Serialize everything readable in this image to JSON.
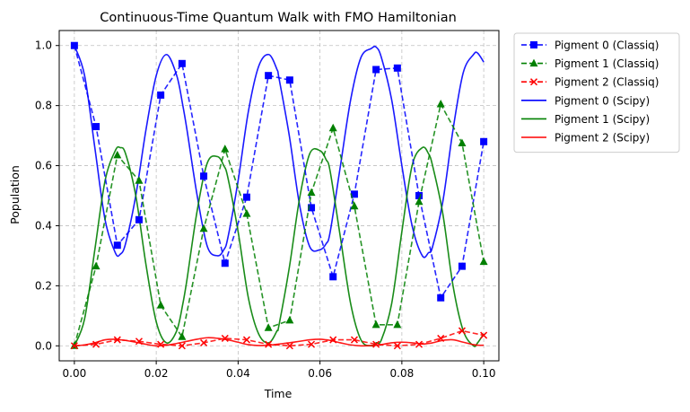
{
  "chart_data": {
    "type": "line",
    "title": "Continuous-Time Quantum Walk with FMO Hamiltonian",
    "xlabel": "Time",
    "ylabel": "Population",
    "xlim": [
      -0.0037,
      0.1037
    ],
    "ylim": [
      -0.05,
      1.05
    ],
    "xticks": [
      0.0,
      0.02,
      0.04,
      0.06,
      0.08,
      0.1
    ],
    "xtick_labels": [
      "0.00",
      "0.02",
      "0.04",
      "0.06",
      "0.08",
      "0.10"
    ],
    "yticks": [
      0.0,
      0.2,
      0.4,
      0.6,
      0.8,
      1.0
    ],
    "ytick_labels": [
      "0.0",
      "0.2",
      "0.4",
      "0.6",
      "0.8",
      "1.0"
    ],
    "grid": true,
    "legend_position": "outside-right",
    "x_sampled": [
      0.0,
      0.0053,
      0.0105,
      0.0158,
      0.0211,
      0.0263,
      0.0316,
      0.0368,
      0.0421,
      0.0474,
      0.0526,
      0.0579,
      0.0632,
      0.0684,
      0.0737,
      0.0789,
      0.0842,
      0.0895,
      0.0947,
      0.1
    ],
    "x_dense": [
      0.0,
      0.0025,
      0.005,
      0.0075,
      0.01,
      0.0112,
      0.0125,
      0.015,
      0.0175,
      0.02,
      0.0225,
      0.025,
      0.0265,
      0.0275,
      0.03,
      0.0325,
      0.035,
      0.0365,
      0.0375,
      0.04,
      0.0425,
      0.045,
      0.0475,
      0.0495,
      0.05,
      0.0525,
      0.055,
      0.0575,
      0.06,
      0.0615,
      0.0625,
      0.065,
      0.0675,
      0.07,
      0.0725,
      0.0737,
      0.075,
      0.0775,
      0.08,
      0.0825,
      0.085,
      0.0865,
      0.0875,
      0.09,
      0.0925,
      0.095,
      0.0975,
      0.0985,
      0.1
    ],
    "series": [
      {
        "name": "Pigment 0 (Classiq)",
        "kind": "sampled",
        "color": "#0000ff",
        "marker": "square",
        "y": [
          1.0,
          0.73,
          0.335,
          0.42,
          0.835,
          0.94,
          0.565,
          0.275,
          0.495,
          0.9,
          0.885,
          0.46,
          0.23,
          0.505,
          0.92,
          0.925,
          0.5,
          0.16,
          0.265,
          0.68
        ]
      },
      {
        "name": "Pigment 1 (Classiq)",
        "kind": "sampled",
        "color": "#008000",
        "marker": "triangle",
        "y": [
          0.0,
          0.265,
          0.635,
          0.55,
          0.135,
          0.03,
          0.39,
          0.655,
          0.44,
          0.06,
          0.085,
          0.51,
          0.725,
          0.465,
          0.07,
          0.07,
          0.48,
          0.805,
          0.675,
          0.28
        ]
      },
      {
        "name": "Pigment 2 (Classiq)",
        "kind": "sampled",
        "color": "#ff0000",
        "marker": "x",
        "y": [
          0.0,
          0.005,
          0.02,
          0.015,
          0.005,
          0.0,
          0.01,
          0.025,
          0.02,
          0.005,
          0.0,
          0.005,
          0.02,
          0.02,
          0.005,
          0.0,
          0.005,
          0.025,
          0.05,
          0.035
        ]
      },
      {
        "name": "Pigment 0 (Scipy)",
        "kind": "dense",
        "color": "#0000ff",
        "y": [
          1.0,
          0.9,
          0.66,
          0.42,
          0.31,
          0.305,
          0.34,
          0.5,
          0.72,
          0.9,
          0.97,
          0.9,
          0.8,
          0.72,
          0.5,
          0.33,
          0.3,
          0.32,
          0.36,
          0.55,
          0.78,
          0.93,
          0.97,
          0.92,
          0.89,
          0.7,
          0.47,
          0.33,
          0.32,
          0.34,
          0.38,
          0.6,
          0.82,
          0.96,
          0.99,
          0.995,
          0.96,
          0.82,
          0.6,
          0.4,
          0.3,
          0.31,
          0.33,
          0.48,
          0.72,
          0.91,
          0.97,
          0.975,
          0.945
        ]
      },
      {
        "name": "Pigment 1 (Scipy)",
        "kind": "dense",
        "color": "#008000",
        "y": [
          0.0,
          0.09,
          0.32,
          0.55,
          0.65,
          0.66,
          0.64,
          0.5,
          0.27,
          0.08,
          0.01,
          0.05,
          0.14,
          0.22,
          0.45,
          0.61,
          0.63,
          0.6,
          0.56,
          0.38,
          0.16,
          0.04,
          0.01,
          0.05,
          0.07,
          0.26,
          0.49,
          0.64,
          0.65,
          0.62,
          0.58,
          0.36,
          0.14,
          0.02,
          0.0,
          0.01,
          0.02,
          0.14,
          0.38,
          0.6,
          0.66,
          0.64,
          0.6,
          0.44,
          0.2,
          0.05,
          0.0,
          0.01,
          0.04
        ]
      },
      {
        "name": "Pigment 2 (Scipy)",
        "kind": "dense",
        "color": "#ff0000",
        "y": [
          0.0,
          0.003,
          0.01,
          0.02,
          0.022,
          0.02,
          0.018,
          0.012,
          0.005,
          0.0,
          0.002,
          0.008,
          0.012,
          0.015,
          0.022,
          0.027,
          0.025,
          0.022,
          0.02,
          0.012,
          0.004,
          0.001,
          0.002,
          0.005,
          0.006,
          0.01,
          0.015,
          0.02,
          0.022,
          0.02,
          0.018,
          0.01,
          0.003,
          0.0,
          0.001,
          0.002,
          0.004,
          0.01,
          0.012,
          0.01,
          0.006,
          0.008,
          0.01,
          0.018,
          0.02,
          0.012,
          0.004,
          0.002,
          0.002
        ]
      }
    ]
  }
}
